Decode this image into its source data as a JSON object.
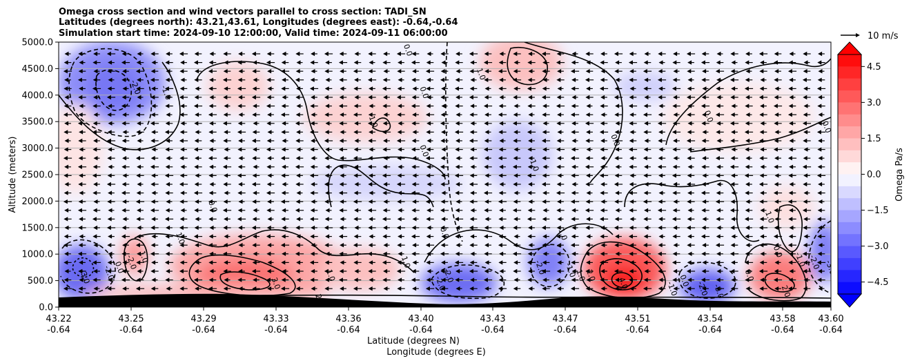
{
  "chart_data": {
    "type": "heatmap",
    "title_lines": [
      "Omega cross section and wind vectors parallel to cross section: TADI_SN",
      "Latitudes (degrees north): 43.21,43.61, Longitudes (degrees east): -0.64,-0.64",
      "Simulation start time: 2024-09-10 12:00:00, Valid time: 2024-09-11 06:00:00"
    ],
    "ylabel": "Altitude (meters)",
    "xlabel_lat": "Latitude (degrees N)",
    "xlabel_lon": "Longitude (degrees E)",
    "y_ticks": [
      "0.0",
      "500.0",
      "1000.0",
      "1500.0",
      "2000.0",
      "2500.0",
      "3000.0",
      "3500.0",
      "4000.0",
      "4500.0",
      "5000.0"
    ],
    "ylim": [
      0,
      5000
    ],
    "x_ticks": [
      {
        "lat": "43.22",
        "lon": "-0.64"
      },
      {
        "lat": "43.25",
        "lon": "-0.64"
      },
      {
        "lat": "43.29",
        "lon": "-0.64"
      },
      {
        "lat": "43.33",
        "lon": "-0.64"
      },
      {
        "lat": "43.36",
        "lon": "-0.64"
      },
      {
        "lat": "43.40",
        "lon": "-0.64"
      },
      {
        "lat": "43.43",
        "lon": "-0.64"
      },
      {
        "lat": "43.47",
        "lon": "-0.64"
      },
      {
        "lat": "43.51",
        "lon": "-0.64"
      },
      {
        "lat": "43.54",
        "lon": "-0.64"
      },
      {
        "lat": "43.58",
        "lon": "-0.64"
      },
      {
        "lat": "43.60",
        "lon": "-0.64"
      }
    ],
    "xlim": [
      43.22,
      43.6
    ],
    "grid": "horizontal",
    "colorbar": {
      "label": "Omega Pa/s",
      "ticks": [
        "4.5",
        "3.0",
        "1.5",
        "0.0",
        "−1.5",
        "−3.0",
        "−4.5"
      ],
      "range": [
        -5.0,
        5.0
      ],
      "colormap": "bwr",
      "extend": "both"
    },
    "quiver_key": {
      "label": "10 m/s",
      "speed": 10
    },
    "contour_levels": [
      -4.0,
      -3.0,
      -2.0,
      -1.0,
      0.0,
      1.0,
      2.0,
      3.0,
      4.0
    ],
    "contour_labels": [
      {
        "text": "0.0",
        "lat": 43.392,
        "alt": 4850
      },
      {
        "text": "1.0",
        "lat": 43.428,
        "alt": 4400
      },
      {
        "text": "0.0",
        "lat": 43.4,
        "alt": 4050
      },
      {
        "text": "-2.0",
        "lat": 43.258,
        "alt": 4150
      },
      {
        "text": "-1.0",
        "lat": 43.273,
        "alt": 4050
      },
      {
        "text": "1.0",
        "lat": 43.375,
        "alt": 3500
      },
      {
        "text": "0.0",
        "lat": 43.54,
        "alt": 3600
      },
      {
        "text": "0.0",
        "lat": 43.598,
        "alt": 3400
      },
      {
        "text": "0.0",
        "lat": 43.4,
        "alt": 2950
      },
      {
        "text": "0.0",
        "lat": 43.494,
        "alt": 3150
      },
      {
        "text": "-1.0",
        "lat": 43.454,
        "alt": 2700
      },
      {
        "text": "0.0",
        "lat": 43.296,
        "alt": 1900
      },
      {
        "text": "1.0",
        "lat": 43.57,
        "alt": 1700
      },
      {
        "text": "1.0",
        "lat": 43.28,
        "alt": 1300
      },
      {
        "text": "0.0",
        "lat": 43.41,
        "alt": 1400
      },
      {
        "text": "-1.0",
        "lat": 43.468,
        "alt": 1400
      },
      {
        "text": "1.0",
        "lat": 43.262,
        "alt": 950
      },
      {
        "text": "-2.0",
        "lat": 43.256,
        "alt": 850
      },
      {
        "text": "0.0",
        "lat": 43.25,
        "alt": 750
      },
      {
        "text": "-2.0",
        "lat": 43.245,
        "alt": 650
      },
      {
        "text": "-3.0",
        "lat": 43.233,
        "alt": 580
      },
      {
        "text": "1.0",
        "lat": 43.391,
        "alt": 850
      },
      {
        "text": "0.0",
        "lat": 43.574,
        "alt": 1050
      },
      {
        "text": "-1.0",
        "lat": 43.585,
        "alt": 900
      },
      {
        "text": "-2.0",
        "lat": 43.592,
        "alt": 850
      },
      {
        "text": "-3.0",
        "lat": 43.6,
        "alt": 750
      },
      {
        "text": "1.0",
        "lat": 43.354,
        "alt": 600
      },
      {
        "text": "-2.0",
        "lat": 43.412,
        "alt": 600
      },
      {
        "text": "-2.0",
        "lat": 43.457,
        "alt": 750
      },
      {
        "text": "-1.0",
        "lat": 43.472,
        "alt": 700
      },
      {
        "text": "1.0",
        "lat": 43.477,
        "alt": 600
      },
      {
        "text": "2.0",
        "lat": 43.482,
        "alt": 600
      },
      {
        "text": "-2.0",
        "lat": 43.408,
        "alt": 450
      },
      {
        "text": "3.0",
        "lat": 43.327,
        "alt": 450
      },
      {
        "text": "4.0",
        "lat": 43.498,
        "alt": 450
      },
      {
        "text": "0.0",
        "lat": 43.528,
        "alt": 500
      },
      {
        "text": "0.0",
        "lat": 43.56,
        "alt": 600
      },
      {
        "text": "-2.0",
        "lat": 43.537,
        "alt": 350
      },
      {
        "text": "-3.0",
        "lat": 43.545,
        "alt": 300
      },
      {
        "text": "2.0",
        "lat": 43.578,
        "alt": 300
      },
      {
        "text": "2",
        "lat": 43.348,
        "alt": 200
      },
      {
        "text": "-1.0",
        "lat": 43.522,
        "alt": 350
      }
    ],
    "wind_note": "vectors predominantly point toward decreasing latitude (southward) at roughly uniform speed"
  }
}
